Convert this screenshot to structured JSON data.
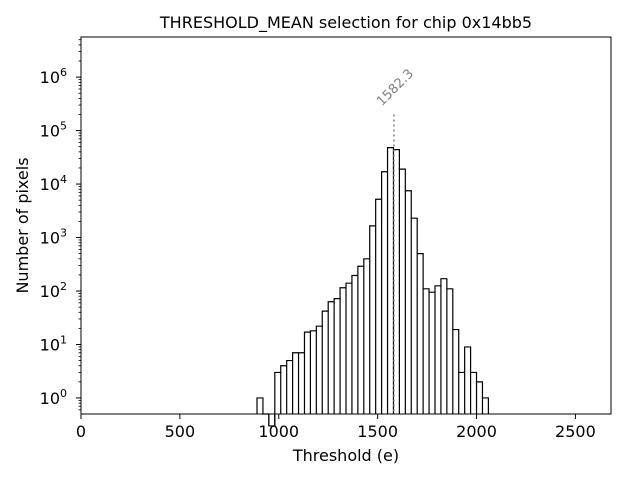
{
  "chart_data": {
    "type": "histogram",
    "title": "THRESHOLD_MEAN selection for chip 0x14bb5",
    "xlabel": "Threshold (e)",
    "ylabel": "Number of pixels",
    "xlim": [
      0,
      2680
    ],
    "ylim_log10": [
      -0.3,
      6.75
    ],
    "yscale": "log",
    "x_ticks": [
      0,
      500,
      1000,
      1500,
      2000,
      2500
    ],
    "x_tick_labels": [
      "0",
      "500",
      "1000",
      "1500",
      "2000",
      "2500"
    ],
    "y_ticks_exp": [
      0,
      1,
      2,
      3,
      4,
      5,
      6
    ],
    "y_tick_base": "10",
    "bins": [
      {
        "x0": 890,
        "x1": 920,
        "count": 1
      },
      {
        "x0": 920,
        "x1": 950,
        "count": 0
      },
      {
        "x0": 950,
        "x1": 980,
        "count": 0.3
      },
      {
        "x0": 980,
        "x1": 1010,
        "count": 3
      },
      {
        "x0": 1010,
        "x1": 1040,
        "count": 4
      },
      {
        "x0": 1040,
        "x1": 1070,
        "count": 5
      },
      {
        "x0": 1070,
        "x1": 1100,
        "count": 7
      },
      {
        "x0": 1100,
        "x1": 1130,
        "count": 7
      },
      {
        "x0": 1130,
        "x1": 1160,
        "count": 17
      },
      {
        "x0": 1160,
        "x1": 1190,
        "count": 18
      },
      {
        "x0": 1190,
        "x1": 1220,
        "count": 22
      },
      {
        "x0": 1220,
        "x1": 1250,
        "count": 42
      },
      {
        "x0": 1250,
        "x1": 1280,
        "count": 63
      },
      {
        "x0": 1280,
        "x1": 1310,
        "count": 72
      },
      {
        "x0": 1310,
        "x1": 1340,
        "count": 115
      },
      {
        "x0": 1340,
        "x1": 1370,
        "count": 140
      },
      {
        "x0": 1370,
        "x1": 1400,
        "count": 195
      },
      {
        "x0": 1400,
        "x1": 1430,
        "count": 290
      },
      {
        "x0": 1430,
        "x1": 1460,
        "count": 400
      },
      {
        "x0": 1460,
        "x1": 1490,
        "count": 1650
      },
      {
        "x0": 1490,
        "x1": 1520,
        "count": 5200
      },
      {
        "x0": 1520,
        "x1": 1550,
        "count": 17000
      },
      {
        "x0": 1550,
        "x1": 1580,
        "count": 48000
      },
      {
        "x0": 1580,
        "x1": 1610,
        "count": 44000
      },
      {
        "x0": 1610,
        "x1": 1640,
        "count": 19000
      },
      {
        "x0": 1640,
        "x1": 1670,
        "count": 7500
      },
      {
        "x0": 1670,
        "x1": 1700,
        "count": 2300
      },
      {
        "x0": 1700,
        "x1": 1730,
        "count": 500
      },
      {
        "x0": 1730,
        "x1": 1760,
        "count": 110
      },
      {
        "x0": 1760,
        "x1": 1790,
        "count": 95
      },
      {
        "x0": 1790,
        "x1": 1820,
        "count": 125
      },
      {
        "x0": 1820,
        "x1": 1850,
        "count": 170
      },
      {
        "x0": 1850,
        "x1": 1880,
        "count": 110
      },
      {
        "x0": 1880,
        "x1": 1910,
        "count": 19
      },
      {
        "x0": 1910,
        "x1": 1940,
        "count": 3
      },
      {
        "x0": 1940,
        "x1": 1970,
        "count": 9
      },
      {
        "x0": 1970,
        "x1": 2000,
        "count": 3
      },
      {
        "x0": 2000,
        "x1": 2030,
        "count": 2
      },
      {
        "x0": 2030,
        "x1": 2060,
        "count": 1
      }
    ],
    "line_color": "#000000",
    "annotation": {
      "x": 1582.3,
      "y_top": 200000,
      "text": "1582.3",
      "color": "#808080",
      "style": "dotted"
    }
  }
}
